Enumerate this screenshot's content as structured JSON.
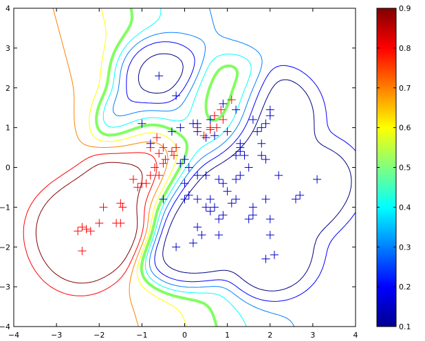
{
  "chart_data": {
    "type": "contour",
    "title": "",
    "xlabel": "",
    "ylabel": "",
    "xlim": [
      -4,
      4
    ],
    "ylim": [
      -4,
      4
    ],
    "xticks": [
      -4,
      -3,
      -2,
      -1,
      0,
      1,
      2,
      3,
      4
    ],
    "yticks": [
      -4,
      -3,
      -2,
      -1,
      0,
      1,
      2,
      3,
      4
    ],
    "grid": false,
    "colormap": "jet",
    "colorbar": {
      "min": 0.1,
      "max": 0.9,
      "ticks": [
        "0.1",
        "0.2",
        "0.3",
        "0.4",
        "0.5",
        "0.6",
        "0.7",
        "0.8",
        "0.9"
      ]
    },
    "contour_levels": [
      0.1,
      0.2,
      0.3,
      0.4,
      0.5,
      0.6,
      0.7,
      0.8,
      0.9
    ],
    "decision_level": 0.5,
    "series": [
      {
        "marker": "+",
        "color": "#ff0000",
        "points": [
          [
            -1.9,
            -1.0
          ],
          [
            -2.4,
            -1.5
          ],
          [
            -2.2,
            -1.6
          ],
          [
            -2.3,
            -1.55
          ],
          [
            -2.5,
            -1.6
          ],
          [
            -2.4,
            -2.1
          ],
          [
            -2.0,
            -1.4
          ],
          [
            -1.5,
            -0.9
          ],
          [
            -1.45,
            -1.0
          ],
          [
            -1.5,
            -1.4
          ],
          [
            -1.6,
            -1.4
          ],
          [
            -1.2,
            -0.3
          ],
          [
            -1.1,
            -0.5
          ],
          [
            -1.0,
            -0.4
          ],
          [
            -0.9,
            -0.4
          ],
          [
            -0.8,
            -0.2
          ],
          [
            -0.6,
            -0.2
          ],
          [
            -0.7,
            0.0
          ],
          [
            -0.5,
            0.1
          ],
          [
            -0.45,
            0.2
          ],
          [
            -0.6,
            0.35
          ],
          [
            -0.5,
            0.5
          ],
          [
            -0.3,
            0.4
          ],
          [
            -0.25,
            0.3
          ],
          [
            -0.2,
            0.5
          ],
          [
            -0.8,
            0.5
          ],
          [
            -0.65,
            0.75
          ],
          [
            0.6,
            1.0
          ],
          [
            0.75,
            1.0
          ],
          [
            0.85,
            1.45
          ],
          [
            0.9,
            1.2
          ],
          [
            1.1,
            1.7
          ],
          [
            0.6,
            0.95
          ],
          [
            0.3,
            1.0
          ],
          [
            0.45,
            0.8
          ],
          [
            0.7,
            1.3
          ]
        ]
      },
      {
        "marker": "+",
        "color": "#0000cc",
        "points": [
          [
            -0.6,
            2.3
          ],
          [
            -0.2,
            1.8
          ],
          [
            -1.0,
            1.1
          ],
          [
            -0.8,
            0.6
          ],
          [
            -0.3,
            0.9
          ],
          [
            -0.1,
            1.0
          ],
          [
            0.2,
            1.1
          ],
          [
            0.3,
            0.9
          ],
          [
            0.3,
            1.1
          ],
          [
            0.6,
            1.2
          ],
          [
            0.9,
            1.6
          ],
          [
            1.2,
            1.45
          ],
          [
            1.0,
            0.9
          ],
          [
            0.7,
            0.8
          ],
          [
            0.5,
            0.75
          ],
          [
            -0.1,
            0.1
          ],
          [
            0.0,
            0.2
          ],
          [
            0.1,
            0.0
          ],
          [
            -0.5,
            -0.8
          ],
          [
            0.0,
            -0.4
          ],
          [
            0.0,
            -0.8
          ],
          [
            0.1,
            -0.7
          ],
          [
            0.2,
            -1.9
          ],
          [
            0.3,
            -1.5
          ],
          [
            0.4,
            -1.7
          ],
          [
            -0.2,
            -2.0
          ],
          [
            0.3,
            -0.8
          ],
          [
            0.6,
            -0.8
          ],
          [
            0.7,
            -1.0
          ],
          [
            0.6,
            -1.1
          ],
          [
            0.8,
            -1.3
          ],
          [
            0.8,
            -1.7
          ],
          [
            0.9,
            -1.2
          ],
          [
            0.5,
            -0.2
          ],
          [
            0.3,
            -0.2
          ],
          [
            0.5,
            -1.0
          ],
          [
            0.8,
            -0.3
          ],
          [
            1.0,
            -0.6
          ],
          [
            1.1,
            -0.9
          ],
          [
            1.2,
            -0.8
          ],
          [
            1.2,
            -0.3
          ],
          [
            1.3,
            -0.2
          ],
          [
            1.3,
            0.6
          ],
          [
            1.3,
            0.4
          ],
          [
            1.4,
            0.3
          ],
          [
            1.5,
            0.0
          ],
          [
            1.6,
            1.2
          ],
          [
            1.7,
            0.9
          ],
          [
            1.8,
            1.0
          ],
          [
            1.9,
            1.1
          ],
          [
            2.0,
            1.3
          ],
          [
            2.0,
            1.45
          ],
          [
            1.8,
            0.6
          ],
          [
            1.9,
            0.2
          ],
          [
            2.2,
            -0.2
          ],
          [
            1.9,
            -0.8
          ],
          [
            2.0,
            -1.3
          ],
          [
            2.0,
            -1.7
          ],
          [
            2.1,
            -2.2
          ],
          [
            1.9,
            -2.3
          ],
          [
            2.6,
            -0.8
          ],
          [
            2.7,
            -0.7
          ],
          [
            3.1,
            -0.3
          ],
          [
            1.6,
            -1.2
          ],
          [
            1.5,
            -1.3
          ],
          [
            1.6,
            -1.0
          ],
          [
            1.2,
            0.3
          ],
          [
            1.3,
            0.5
          ],
          [
            0.9,
            -0.4
          ],
          [
            1.8,
            0.3
          ]
        ]
      }
    ]
  }
}
